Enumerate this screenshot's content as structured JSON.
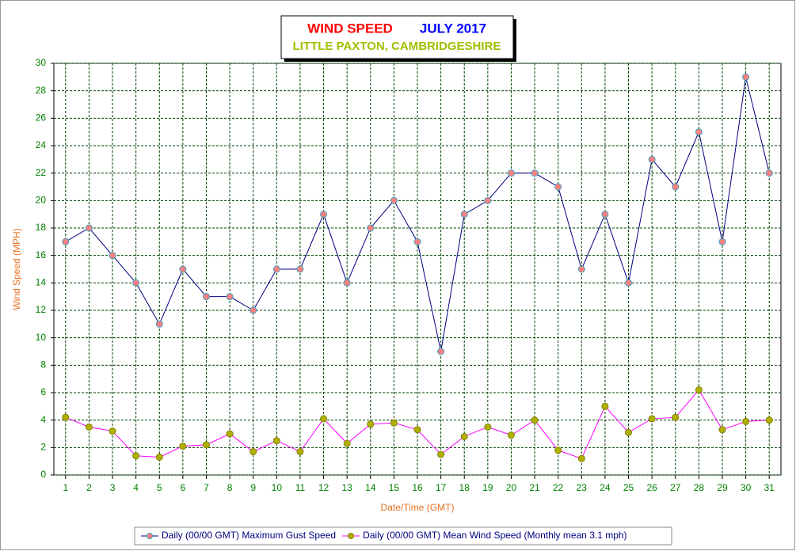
{
  "chart_data": {
    "type": "line",
    "title": "WIND SPEED",
    "title_date": "JULY 2017",
    "subtitle": "LITTLE PAXTON, CAMBRIDGESHIRE",
    "x_label": "Date/Time (GMT)",
    "y_label": "Wind Speed (MPH)",
    "categories": [
      "1",
      "2",
      "3",
      "4",
      "5",
      "6",
      "7",
      "8",
      "9",
      "10",
      "11",
      "12",
      "13",
      "14",
      "15",
      "16",
      "17",
      "18",
      "19",
      "20",
      "21",
      "22",
      "23",
      "24",
      "25",
      "26",
      "27",
      "28",
      "29",
      "30",
      "31"
    ],
    "series": [
      {
        "name": "Daily (00/00 GMT) Maximum Gust Speed",
        "color": "#000080",
        "marker_color": "#ff8080",
        "marker_edge": "#40a0c0",
        "values": [
          17,
          18,
          16,
          14,
          11,
          15,
          13,
          13,
          12,
          15,
          15,
          19,
          14,
          18,
          20,
          17,
          9,
          19,
          20,
          22,
          22,
          21,
          15,
          19,
          14,
          23,
          21,
          25,
          17,
          29,
          22
        ]
      },
      {
        "name": "Daily (00/00 GMT) Mean Wind Speed (Monthly mean 3.1 mph)",
        "color": "#ff00ff",
        "marker_color": "#b0b000",
        "marker_edge": "#808000",
        "values": [
          4.2,
          3.5,
          3.2,
          1.4,
          1.3,
          2.1,
          2.2,
          3.0,
          1.7,
          2.5,
          1.7,
          4.1,
          2.3,
          3.7,
          3.8,
          3.3,
          1.5,
          2.8,
          3.5,
          2.9,
          4.0,
          1.8,
          1.2,
          5.0,
          3.1,
          4.1,
          4.2,
          6.2,
          3.3,
          3.9,
          4.0
        ]
      }
    ],
    "ylim": [
      0,
      30
    ],
    "yticks": [
      0,
      2,
      4,
      6,
      8,
      10,
      12,
      14,
      16,
      18,
      20,
      22,
      24,
      26,
      28,
      30
    ],
    "grid": true
  }
}
